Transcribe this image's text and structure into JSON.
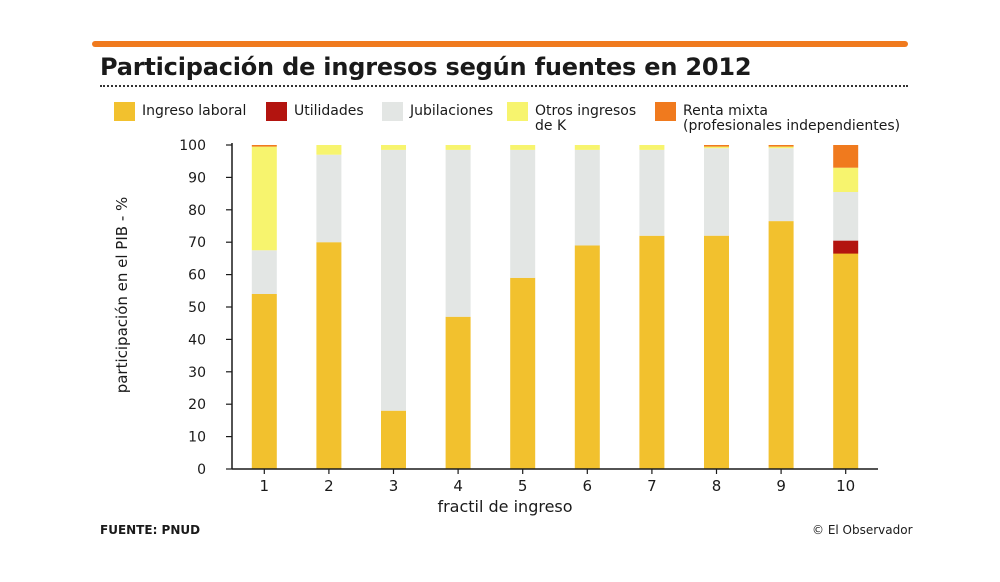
{
  "title": "Participación de ingresos según fuentes en 2012",
  "footer": {
    "source": "FUENTE: PNUD",
    "credit": "© El Observador"
  },
  "colors": {
    "accent_rule": "#f07a1e",
    "ingreso_laboral": "#f2c12e",
    "utilidades": "#b3140f",
    "jubilaciones": "#e3e6e4",
    "otros_ingresos": "#f7f46e",
    "renta_mixta": "#f07a1e"
  },
  "chart_data": {
    "type": "bar",
    "stacked": true,
    "title": "Participación de ingresos según fuentes en 2012",
    "xlabel": "fractil de ingreso",
    "ylabel": "participación en el PIB - %",
    "ylim": [
      0,
      100
    ],
    "yticks": [
      0,
      10,
      20,
      30,
      40,
      50,
      60,
      70,
      80,
      90,
      100
    ],
    "categories": [
      "1",
      "2",
      "3",
      "4",
      "5",
      "6",
      "7",
      "8",
      "9",
      "10"
    ],
    "legend_position": "top",
    "grid": false,
    "series": [
      {
        "name": "Ingreso laboral",
        "color": "#f2c12e",
        "values": [
          54,
          70,
          18,
          47,
          59,
          69,
          72,
          72,
          76.5,
          66.5
        ]
      },
      {
        "name": "Utilidades",
        "color": "#b3140f",
        "values": [
          0,
          0,
          0,
          0,
          0,
          0,
          0,
          0,
          0,
          4
        ]
      },
      {
        "name": "Jubilaciones",
        "color": "#e3e6e4",
        "values": [
          13.5,
          27,
          80.5,
          51.5,
          39.5,
          29.5,
          26.5,
          27,
          22.5,
          15
        ]
      },
      {
        "name": "Otros ingresos\nde K",
        "color": "#f7f46e",
        "values": [
          32,
          3,
          1.5,
          1.5,
          1.5,
          1.5,
          1.5,
          0.5,
          0.5,
          7.5
        ]
      },
      {
        "name": "Renta mixta\n(profesionales independientes)",
        "color": "#f07a1e",
        "values": [
          0.5,
          0,
          0,
          0,
          0,
          0,
          0,
          0.5,
          0.5,
          7
        ]
      }
    ]
  }
}
